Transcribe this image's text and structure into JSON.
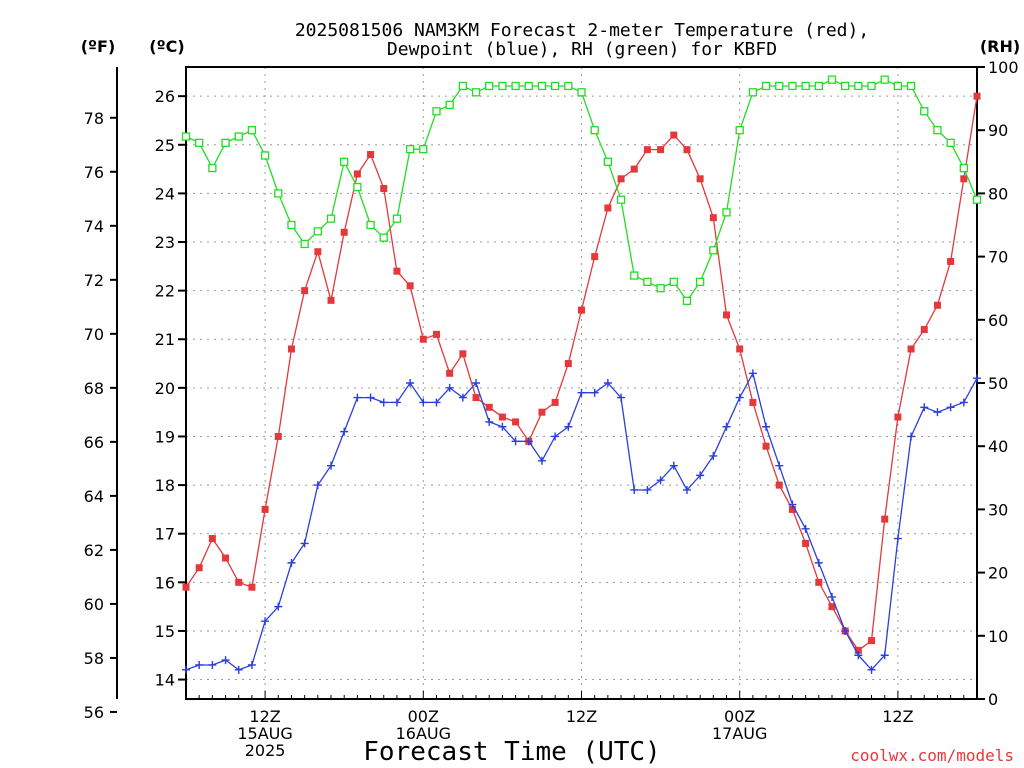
{
  "title_line1": "2025081506 NAM3KM Forecast 2-meter Temperature (red),",
  "title_line2": "Dewpoint (blue), RH (green) for KBFD",
  "unit_f": "(ºF)",
  "unit_c": "(ºC)",
  "unit_rh": "(RH)",
  "xlabel": "Forecast Time (UTC)",
  "credit": "coolwx.com/models",
  "colors": {
    "temperature": "#e5383b",
    "dewpoint": "#2a3fe0",
    "rh": "#22dd22",
    "grid": "#9a9a9a"
  },
  "chart_data": {
    "type": "line",
    "x_unit": "forecast hour from 2025-08-15 06Z",
    "x": [
      0,
      1,
      2,
      3,
      4,
      5,
      6,
      7,
      8,
      9,
      10,
      11,
      12,
      13,
      14,
      15,
      16,
      17,
      18,
      19,
      20,
      21,
      22,
      23,
      24,
      25,
      26,
      27,
      28,
      29,
      30,
      31,
      32,
      33,
      34,
      35,
      36,
      37,
      38,
      39,
      40,
      41,
      42,
      43,
      44,
      45,
      46,
      47,
      48,
      49,
      50,
      51,
      52,
      53,
      54,
      55,
      56,
      57,
      58,
      59,
      60
    ],
    "xlim": [
      0,
      60
    ],
    "x_ticks": [
      {
        "x": 6,
        "lines": [
          "12Z",
          "15AUG",
          "2025"
        ]
      },
      {
        "x": 18,
        "lines": [
          "00Z",
          "16AUG"
        ]
      },
      {
        "x": 30,
        "lines": [
          "12Z"
        ]
      },
      {
        "x": 42,
        "lines": [
          "00Z",
          "17AUG"
        ]
      },
      {
        "x": 54,
        "lines": [
          "12Z"
        ]
      }
    ],
    "y_left_f": {
      "ticks": [
        56,
        58,
        60,
        62,
        64,
        66,
        68,
        70,
        72,
        74,
        76,
        78
      ]
    },
    "y_left_c": {
      "lim": [
        13.6,
        26.6
      ],
      "ticks": [
        14,
        15,
        16,
        17,
        18,
        19,
        20,
        21,
        22,
        23,
        24,
        25,
        26
      ]
    },
    "y_right_rh": {
      "lim": [
        0,
        100
      ],
      "ticks": [
        0,
        10,
        20,
        30,
        40,
        50,
        60,
        70,
        80,
        90,
        100
      ]
    },
    "grid": true,
    "series": [
      {
        "key": "temperature",
        "axis": "c",
        "marker": "filled-square",
        "values": [
          15.9,
          16.3,
          16.9,
          16.5,
          16.0,
          15.9,
          17.5,
          19.0,
          20.8,
          22.0,
          22.8,
          21.8,
          23.2,
          24.4,
          24.8,
          24.1,
          22.4,
          22.1,
          21.0,
          21.1,
          20.3,
          20.7,
          19.8,
          19.6,
          19.4,
          19.3,
          18.9,
          19.5,
          19.7,
          20.5,
          21.6,
          22.7,
          23.7,
          24.3,
          24.5,
          24.9,
          24.9,
          25.2,
          24.9,
          24.3,
          23.5,
          21.5,
          20.8,
          19.7,
          18.8,
          18.0,
          17.5,
          16.8,
          16.0,
          15.5,
          15.0,
          14.6,
          14.8,
          17.3,
          19.4,
          20.8,
          21.2,
          21.7,
          22.6,
          24.3,
          26.0
        ]
      },
      {
        "key": "dewpoint",
        "axis": "c",
        "marker": "plus",
        "values": [
          14.2,
          14.3,
          14.3,
          14.4,
          14.2,
          14.3,
          15.2,
          15.5,
          16.4,
          16.8,
          18.0,
          18.4,
          19.1,
          19.8,
          19.8,
          19.7,
          19.7,
          20.1,
          19.7,
          19.7,
          20.0,
          19.8,
          20.1,
          19.3,
          19.2,
          18.9,
          18.9,
          18.5,
          19.0,
          19.2,
          19.9,
          19.9,
          20.1,
          19.8,
          17.9,
          17.9,
          18.1,
          18.4,
          17.9,
          18.2,
          18.6,
          19.2,
          19.8,
          20.3,
          19.2,
          18.4,
          17.6,
          17.1,
          16.4,
          15.7,
          15.0,
          14.5,
          14.2,
          14.5,
          16.9,
          19.0,
          19.6,
          19.5,
          19.6,
          19.7,
          20.2
        ]
      },
      {
        "key": "rh",
        "axis": "rh",
        "marker": "open-square",
        "values": [
          89,
          88,
          84,
          88,
          89,
          90,
          86,
          80,
          75,
          72,
          74,
          76,
          85,
          81,
          75,
          73,
          76,
          87,
          87,
          93,
          94,
          97,
          96,
          97,
          97,
          97,
          97,
          97,
          97,
          97,
          96,
          90,
          85,
          79,
          67,
          66,
          65,
          66,
          63,
          66,
          71,
          77,
          90,
          96,
          97,
          97,
          97,
          97,
          97,
          98,
          97,
          97,
          97,
          98,
          97,
          97,
          93,
          90,
          88,
          84,
          79
        ]
      }
    ]
  }
}
